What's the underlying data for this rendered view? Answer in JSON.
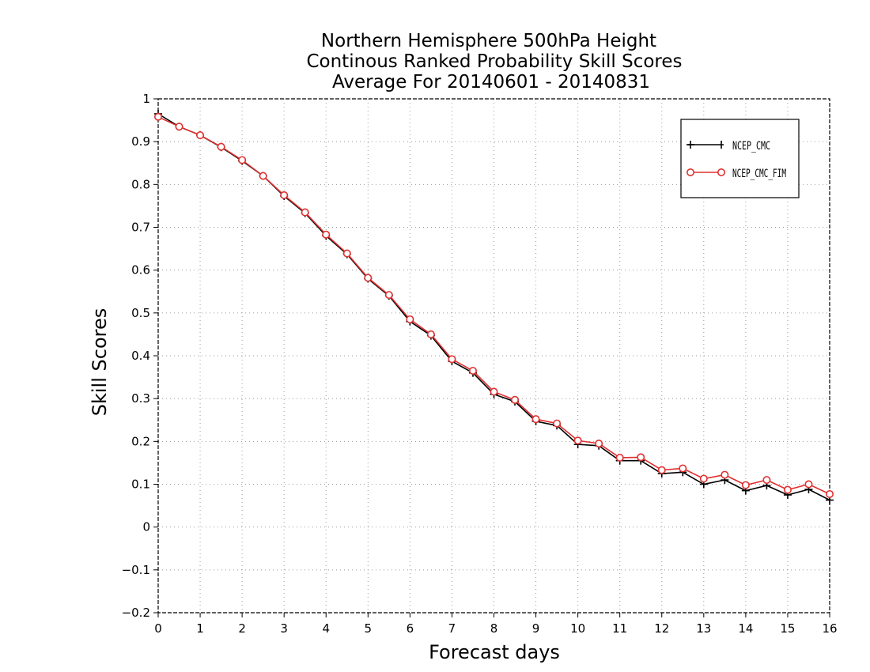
{
  "chart_data": {
    "type": "line",
    "title_lines": [
      "Northern Hemisphere 500hPa Height",
      "Continous Ranked Probability Skill Scores",
      "Average For 20140601 - 20140831"
    ],
    "xlabel": "Forecast days",
    "ylabel": "Skill Scores",
    "xlim": [
      0,
      16
    ],
    "ylim": [
      -0.2,
      1
    ],
    "xticks": [
      "0",
      "1",
      "2",
      "3",
      "4",
      "5",
      "6",
      "7",
      "8",
      "9",
      "10",
      "11",
      "12",
      "13",
      "14",
      "15",
      "16"
    ],
    "yticks": [
      "−0.2",
      "−0.1",
      "0",
      "0.1",
      "0.2",
      "0.3",
      "0.4",
      "0.5",
      "0.6",
      "0.7",
      "0.8",
      "0.9",
      "1"
    ],
    "grid": true,
    "legend_position": "top-right",
    "x": [
      0,
      0.5,
      1,
      1.5,
      2,
      2.5,
      3,
      3.5,
      4,
      4.5,
      5,
      5.5,
      6,
      6.5,
      7,
      7.5,
      8,
      8.5,
      9,
      9.5,
      10,
      10.5,
      11,
      11.5,
      12,
      12.5,
      13,
      13.5,
      14,
      14.5,
      15,
      15.5,
      16
    ],
    "series": [
      {
        "name": "NCEP_CMC",
        "color": "#000000",
        "marker": "plus",
        "values": [
          0.965,
          0.935,
          0.915,
          0.887,
          0.855,
          0.82,
          0.773,
          0.733,
          0.68,
          0.637,
          0.58,
          0.54,
          0.48,
          0.447,
          0.387,
          0.36,
          0.31,
          0.293,
          0.247,
          0.237,
          0.193,
          0.19,
          0.155,
          0.155,
          0.125,
          0.128,
          0.1,
          0.11,
          0.085,
          0.097,
          0.075,
          0.088,
          0.063
        ]
      },
      {
        "name": "NCEP_CMC_FIM",
        "color": "#e03030",
        "marker": "circle",
        "values": [
          0.958,
          0.935,
          0.915,
          0.888,
          0.857,
          0.82,
          0.775,
          0.735,
          0.683,
          0.639,
          0.582,
          0.542,
          0.485,
          0.45,
          0.392,
          0.365,
          0.316,
          0.297,
          0.252,
          0.242,
          0.202,
          0.195,
          0.162,
          0.163,
          0.133,
          0.137,
          0.113,
          0.122,
          0.098,
          0.11,
          0.087,
          0.1,
          0.077
        ]
      }
    ]
  }
}
